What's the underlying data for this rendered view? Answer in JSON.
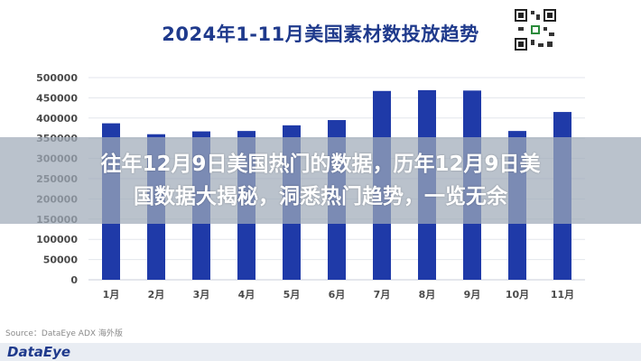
{
  "overlay": {
    "line1": "往年12月9日美国热门的数据，历年12月9日美",
    "line2": "国数据大揭秘，洞悉热门趋势，一览无余"
  },
  "source": "Source：DataEye ADX 海外版",
  "brand": "DataEye",
  "colors": {
    "bar": "#1f3aa8",
    "title": "#1f3a8c",
    "grid": "#e3e6ec",
    "axis_text": "#4a4a4a"
  },
  "chart_data": {
    "type": "bar",
    "title": "2024年1-11月美国素材数投放趋势",
    "categories": [
      "1月",
      "2月",
      "3月",
      "4月",
      "5月",
      "6月",
      "7月",
      "8月",
      "9月",
      "10月",
      "11月"
    ],
    "values": [
      387000,
      360000,
      367000,
      368000,
      382000,
      395000,
      467000,
      469000,
      468000,
      368000,
      415000
    ],
    "ylim": [
      0,
      500000
    ],
    "yticks": [
      "0",
      "50000",
      "100000",
      "150000",
      "200000",
      "250000",
      "300000",
      "350000",
      "400000",
      "450000",
      "500000"
    ],
    "grid": true,
    "xlabel": "",
    "ylabel": ""
  }
}
